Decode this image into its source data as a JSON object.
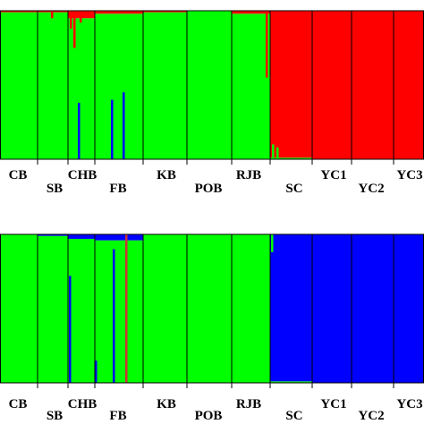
{
  "chart_data": [
    {
      "type": "bar",
      "layout": "stacked-membership-barplot",
      "title": "",
      "xlabel": "",
      "ylabel": "",
      "ylim": [
        0,
        1
      ],
      "colors": {
        "cluster_1": "#00ff00",
        "cluster_2": "#ff0000",
        "border": "#000000"
      },
      "populations": [
        {
          "name": "CB",
          "cluster_1": 0.99,
          "cluster_2": 0.01
        },
        {
          "name": "SB",
          "cluster_1": 0.99,
          "cluster_2": 0.01
        },
        {
          "name": "CHB",
          "cluster_1": 0.95,
          "cluster_2": 0.05
        },
        {
          "name": "FB",
          "cluster_1": 0.98,
          "cluster_2": 0.02
        },
        {
          "name": "KB",
          "cluster_1": 0.99,
          "cluster_2": 0.01
        },
        {
          "name": "POB",
          "cluster_1": 1.0,
          "cluster_2": 0.0
        },
        {
          "name": "RJB",
          "cluster_1": 0.98,
          "cluster_2": 0.02
        },
        {
          "name": "SC",
          "cluster_1": 0.01,
          "cluster_2": 0.99
        },
        {
          "name": "YC1",
          "cluster_1": 0.0,
          "cluster_2": 1.0
        },
        {
          "name": "YC2",
          "cluster_1": 0.0,
          "cluster_2": 1.0
        },
        {
          "name": "YC3",
          "cluster_1": 0.0,
          "cluster_2": 1.0
        }
      ]
    },
    {
      "type": "bar",
      "layout": "stacked-membership-barplot",
      "title": "",
      "xlabel": "",
      "ylabel": "",
      "ylim": [
        0,
        1
      ],
      "colors": {
        "cluster_1": "#00ff00",
        "cluster_2": "#0000ff",
        "border": "#000000"
      },
      "populations": [
        {
          "name": "CB",
          "cluster_1": 1.0,
          "cluster_2": 0.0
        },
        {
          "name": "SB",
          "cluster_1": 0.99,
          "cluster_2": 0.01
        },
        {
          "name": "CHB",
          "cluster_1": 0.97,
          "cluster_2": 0.03
        },
        {
          "name": "FB",
          "cluster_1": 0.96,
          "cluster_2": 0.04
        },
        {
          "name": "KB",
          "cluster_1": 1.0,
          "cluster_2": 0.0
        },
        {
          "name": "POB",
          "cluster_1": 1.0,
          "cluster_2": 0.0
        },
        {
          "name": "RJB",
          "cluster_1": 1.0,
          "cluster_2": 0.0
        },
        {
          "name": "SC",
          "cluster_1": 0.01,
          "cluster_2": 0.99
        },
        {
          "name": "YC1",
          "cluster_1": 0.0,
          "cluster_2": 1.0
        },
        {
          "name": "YC2",
          "cluster_1": 0.0,
          "cluster_2": 1.0
        },
        {
          "name": "YC3",
          "cluster_1": 0.0,
          "cluster_2": 1.0
        }
      ]
    }
  ]
}
